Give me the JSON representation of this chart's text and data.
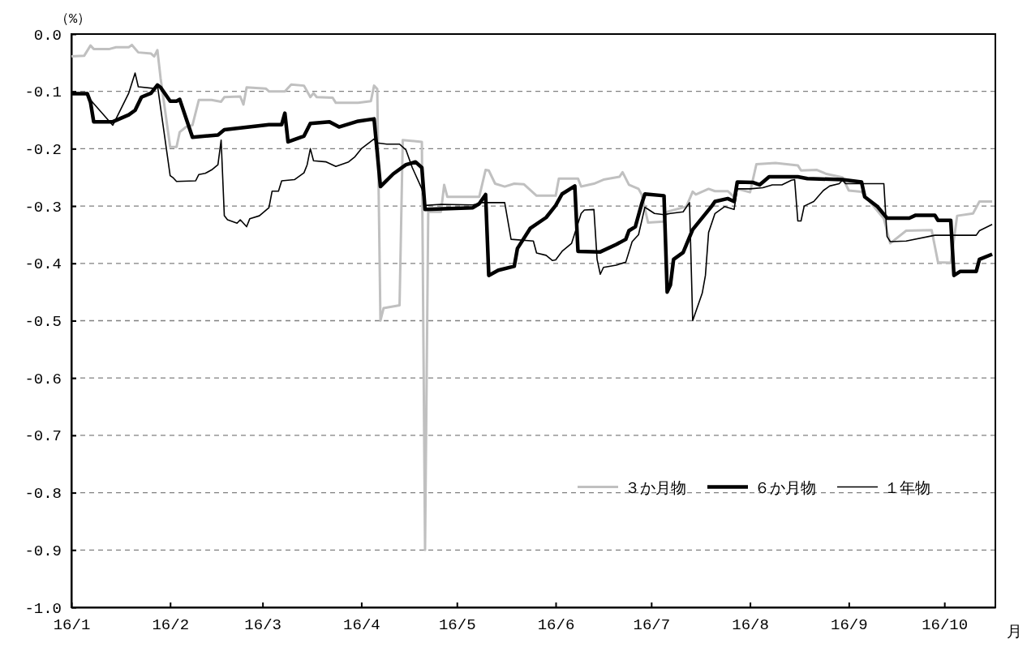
{
  "chart_data": {
    "type": "line",
    "ylabel": "（%）",
    "xlabel": "月",
    "xlim": [
      "--01-01",
      "--10-17"
    ],
    "xticks": [
      {
        "value": "--01-01",
        "label": "16/1"
      },
      {
        "value": "--02-01",
        "label": "16/2"
      },
      {
        "value": "--03-01",
        "label": "16/3"
      },
      {
        "value": "--04-01",
        "label": "16/4"
      },
      {
        "value": "--05-01",
        "label": "16/5"
      },
      {
        "value": "--06-01",
        "label": "16/6"
      },
      {
        "value": "--07-01",
        "label": "16/7"
      },
      {
        "value": "--08-01",
        "label": "16/8"
      },
      {
        "value": "--09-01",
        "label": "16/9"
      },
      {
        "value": "--10-01",
        "label": "16/10"
      }
    ],
    "ylim": [
      -1.0,
      0.0
    ],
    "yticks": [
      {
        "value": 0,
        "label": "0.0"
      },
      {
        "value": -0.1,
        "label": "-0.1"
      },
      {
        "value": -0.2,
        "label": "-0.2"
      },
      {
        "value": -0.3,
        "label": "-0.3"
      },
      {
        "value": -0.4,
        "label": "-0.4"
      },
      {
        "value": -0.5,
        "label": "-0.5"
      },
      {
        "value": -0.6,
        "label": "-0.6"
      },
      {
        "value": -0.7,
        "label": "-0.7"
      },
      {
        "value": -0.8,
        "label": "-0.8"
      },
      {
        "value": -0.9,
        "label": "-0.9"
      },
      {
        "value": -1.0,
        "label": "-1.0"
      }
    ],
    "grid": "y",
    "legend": "bottom right",
    "series": [
      {
        "name": "３か月物",
        "color": "#c0c0c0",
        "x": [
          "--01-01",
          "--01-05",
          "--01-07",
          "--01-08",
          "--01-13",
          "--01-15",
          "--01-19",
          "--01-20",
          "--01-22",
          "--01-26",
          "--01-27",
          "--01-28",
          "--01-29",
          "--02-01",
          "--02-03",
          "--02-04",
          "--02-06",
          "--02-08",
          "--02-10",
          "--02-14",
          "--02-17",
          "--02-18",
          "--02-23",
          "--02-24",
          "--02-25",
          "--03-02",
          "--03-03",
          "--03-08",
          "--03-10",
          "--03-14",
          "--03-16",
          "--03-17",
          "--03-18",
          "--03-23",
          "--03-24",
          "--03-31",
          "--04-04",
          "--04-05",
          "--04-06",
          "--04-07",
          "--04-08",
          "--04-13",
          "--04-14",
          "--04-20",
          "--04-21",
          "--04-22",
          "--04-26",
          "--04-27",
          "--04-28",
          "--05-08",
          "--05-10",
          "--05-11",
          "--05-13",
          "--05-16",
          "--05-19",
          "--05-22",
          "--05-26",
          "--06-01",
          "--06-02",
          "--06-08",
          "--06-09",
          "--06-13",
          "--06-16",
          "--06-21",
          "--06-22",
          "--06-24",
          "--06-27",
          "--06-28",
          "--06-30",
          "--07-05",
          "--07-06",
          "--07-12",
          "--07-14",
          "--07-15",
          "--07-19",
          "--07-21",
          "--07-25",
          "--07-27",
          "--07-28",
          "--08-01",
          "--08-03",
          "--08-09",
          "--08-16",
          "--08-17",
          "--08-22",
          "--08-25",
          "--08-30",
          "--09-01",
          "--09-05",
          "--09-12",
          "--09-14",
          "--09-19",
          "--09-27",
          "--09-29",
          "--10-03",
          "--10-05",
          "--10-10",
          "--10-12",
          "--10-16"
        ],
        "values": [
          -0.039,
          -0.038,
          -0.02,
          -0.026,
          -0.026,
          -0.023,
          -0.023,
          -0.019,
          -0.032,
          -0.034,
          -0.039,
          -0.028,
          -0.077,
          -0.197,
          -0.197,
          -0.171,
          -0.162,
          -0.159,
          -0.115,
          -0.115,
          -0.118,
          -0.11,
          -0.109,
          -0.123,
          -0.093,
          -0.095,
          -0.1,
          -0.1,
          -0.088,
          -0.09,
          -0.11,
          -0.103,
          -0.11,
          -0.111,
          -0.12,
          -0.12,
          -0.117,
          -0.09,
          -0.096,
          -0.5,
          -0.478,
          -0.473,
          -0.185,
          -0.188,
          -0.9,
          -0.31,
          -0.31,
          -0.263,
          -0.284,
          -0.284,
          -0.237,
          -0.238,
          -0.261,
          -0.266,
          -0.261,
          -0.262,
          -0.282,
          -0.282,
          -0.252,
          -0.252,
          -0.266,
          -0.261,
          -0.254,
          -0.249,
          -0.241,
          -0.263,
          -0.27,
          -0.28,
          -0.329,
          -0.327,
          -0.31,
          -0.301,
          -0.275,
          -0.28,
          -0.27,
          -0.274,
          -0.274,
          -0.284,
          -0.27,
          -0.276,
          -0.227,
          -0.225,
          -0.229,
          -0.238,
          -0.237,
          -0.244,
          -0.25,
          -0.273,
          -0.275,
          -0.322,
          -0.365,
          -0.343,
          -0.342,
          -0.398,
          -0.399,
          -0.317,
          -0.313,
          -0.292,
          -0.292
        ]
      },
      {
        "name": "６か月物",
        "color": "#000000",
        "x": [
          "--01-01",
          "--01-06",
          "--01-07",
          "--01-08",
          "--01-14",
          "--01-19",
          "--01-21",
          "--01-23",
          "--01-26",
          "--01-28",
          "--01-29",
          "--02-01",
          "--02-03",
          "--02-04",
          "--02-08",
          "--02-16",
          "--02-18",
          "--03-03",
          "--03-07",
          "--03-08",
          "--03-09",
          "--03-14",
          "--03-16",
          "--03-22",
          "--03-25",
          "--03-31",
          "--04-05",
          "--04-07",
          "--04-11",
          "--04-15",
          "--04-18",
          "--04-20",
          "--04-21",
          "--05-06",
          "--05-08",
          "--05-10",
          "--05-11",
          "--05-14",
          "--05-19",
          "--05-20",
          "--05-24",
          "--05-29",
          "--06-01",
          "--06-03",
          "--06-07",
          "--06-08",
          "--06-15",
          "--06-20",
          "--06-23",
          "--06-24",
          "--06-26",
          "--06-28",
          "--06-29",
          "--07-05",
          "--07-06",
          "--07-07",
          "--07-08",
          "--07-11",
          "--07-14",
          "--07-20",
          "--07-21",
          "--07-25",
          "--07-27",
          "--07-28",
          "--08-02",
          "--08-04",
          "--08-07",
          "--08-16",
          "--08-19",
          "--08-30",
          "--09-05",
          "--09-06",
          "--09-10",
          "--09-13",
          "--09-20",
          "--09-22",
          "--09-28",
          "--09-29",
          "--10-03",
          "--10-04",
          "--10-06",
          "--10-11",
          "--10-12",
          "--10-16"
        ],
        "values": [
          -0.104,
          -0.104,
          -0.119,
          -0.153,
          -0.153,
          -0.141,
          -0.133,
          -0.11,
          -0.103,
          -0.089,
          -0.093,
          -0.117,
          -0.117,
          -0.114,
          -0.18,
          -0.176,
          -0.167,
          -0.158,
          -0.158,
          -0.138,
          -0.188,
          -0.178,
          -0.156,
          -0.153,
          -0.162,
          -0.152,
          -0.148,
          -0.266,
          -0.244,
          -0.228,
          -0.223,
          -0.233,
          -0.306,
          -0.303,
          -0.296,
          -0.28,
          -0.421,
          -0.412,
          -0.405,
          -0.374,
          -0.339,
          -0.32,
          -0.299,
          -0.279,
          -0.265,
          -0.379,
          -0.38,
          -0.367,
          -0.358,
          -0.343,
          -0.336,
          -0.296,
          -0.279,
          -0.282,
          -0.45,
          -0.438,
          -0.393,
          -0.381,
          -0.341,
          -0.3,
          -0.292,
          -0.287,
          -0.292,
          -0.258,
          -0.259,
          -0.263,
          -0.249,
          -0.249,
          -0.252,
          -0.254,
          -0.258,
          -0.284,
          -0.301,
          -0.321,
          -0.321,
          -0.316,
          -0.316,
          -0.325,
          -0.325,
          -0.421,
          -0.414,
          -0.414,
          -0.393,
          -0.384
        ]
      },
      {
        "name": "１年物",
        "color": "#000000",
        "x": [
          "--01-01",
          "--01-06",
          "--01-07",
          "--01-14",
          "--01-15",
          "--01-19",
          "--01-21",
          "--01-22",
          "--01-27",
          "--01-28",
          "--02-01",
          "--02-02",
          "--02-03",
          "--02-09",
          "--02-10",
          "--02-12",
          "--02-14",
          "--02-16",
          "--02-17",
          "--02-18",
          "--02-19",
          "--02-22",
          "--02-23",
          "--02-24",
          "--02-25",
          "--02-26",
          "--02-29",
          "--03-03",
          "--03-04",
          "--03-06",
          "--03-07",
          "--03-11",
          "--03-14",
          "--03-15",
          "--03-16",
          "--03-17",
          "--03-21",
          "--03-24",
          "--03-28",
          "--03-30",
          "--04-01",
          "--04-05",
          "--04-06",
          "--04-09",
          "--04-13",
          "--04-15",
          "--04-17",
          "--04-20",
          "--04-21",
          "--04-26",
          "--05-06",
          "--05-09",
          "--05-16",
          "--05-18",
          "--05-25",
          "--05-26",
          "--05-29",
          "--05-31",
          "--06-01",
          "--06-03",
          "--06-06",
          "--06-09",
          "--06-10",
          "--06-13",
          "--06-14",
          "--06-15",
          "--06-16",
          "--06-20",
          "--06-23",
          "--06-25",
          "--06-27",
          "--06-29",
          "--07-02",
          "--07-05",
          "--07-07",
          "--07-11",
          "--07-13",
          "--07-14",
          "--07-17",
          "--07-18",
          "--07-19",
          "--07-21",
          "--07-24",
          "--07-27",
          "--07-28",
          "--08-01",
          "--08-05",
          "--08-08",
          "--08-11",
          "--08-14",
          "--08-15",
          "--08-16",
          "--08-17",
          "--08-18",
          "--08-21",
          "--08-24",
          "--08-26",
          "--08-29",
          "--08-30",
          "--08-31",
          "--09-12",
          "--09-13",
          "--09-14",
          "--09-19",
          "--09-28",
          "--10-11",
          "--10-12",
          "--10-16"
        ],
        "values": [
          -0.103,
          -0.103,
          -0.115,
          -0.159,
          -0.148,
          -0.103,
          -0.068,
          -0.092,
          -0.095,
          -0.089,
          -0.247,
          -0.251,
          -0.257,
          -0.256,
          -0.245,
          -0.243,
          -0.237,
          -0.228,
          -0.185,
          -0.317,
          -0.324,
          -0.33,
          -0.324,
          -0.33,
          -0.336,
          -0.322,
          -0.317,
          -0.303,
          -0.274,
          -0.274,
          -0.256,
          -0.254,
          -0.242,
          -0.228,
          -0.2,
          -0.221,
          -0.223,
          -0.231,
          -0.223,
          -0.214,
          -0.2,
          -0.183,
          -0.19,
          -0.192,
          -0.192,
          -0.202,
          -0.233,
          -0.27,
          -0.299,
          -0.297,
          -0.298,
          -0.294,
          -0.294,
          -0.358,
          -0.361,
          -0.382,
          -0.386,
          -0.395,
          -0.394,
          -0.379,
          -0.365,
          -0.313,
          -0.307,
          -0.306,
          -0.393,
          -0.419,
          -0.407,
          -0.403,
          -0.398,
          -0.362,
          -0.35,
          -0.302,
          -0.313,
          -0.315,
          -0.313,
          -0.31,
          -0.294,
          -0.5,
          -0.452,
          -0.421,
          -0.346,
          -0.313,
          -0.301,
          -0.306,
          -0.27,
          -0.27,
          -0.268,
          -0.263,
          -0.263,
          -0.255,
          -0.254,
          -0.326,
          -0.326,
          -0.3,
          -0.292,
          -0.273,
          -0.265,
          -0.261,
          -0.255,
          -0.261,
          -0.261,
          -0.353,
          -0.362,
          -0.361,
          -0.351,
          -0.351,
          -0.343,
          -0.332
        ]
      }
    ]
  }
}
